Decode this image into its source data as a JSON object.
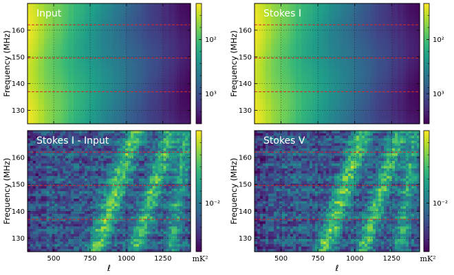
{
  "chart_data": [
    {
      "type": "heatmap",
      "title": "Input",
      "xlabel": "",
      "ylabel": "Frequency (MHz)",
      "xlim": [
        320,
        1440
      ],
      "ylim": [
        125,
        170
      ],
      "xticks": [
        500,
        750,
        1000,
        1250
      ],
      "yticks": [
        130,
        140,
        150,
        160
      ],
      "hlines_mhz": [
        137,
        149.6,
        162
      ],
      "colorbar": {
        "scale": "log",
        "ticks": [
          100,
          1000
        ],
        "tick_labels": [
          "10²",
          "10³"
        ],
        "label": ""
      }
    },
    {
      "type": "heatmap",
      "title": "Stokes I",
      "xlabel": "",
      "ylabel": "Frequency (MHz)",
      "xlim": [
        320,
        1440
      ],
      "ylim": [
        125,
        170
      ],
      "xticks": [
        500,
        750,
        1000,
        1250
      ],
      "yticks": [
        130,
        140,
        150,
        160
      ],
      "hlines_mhz": [
        137,
        149.6,
        162
      ],
      "colorbar": {
        "scale": "log",
        "ticks": [
          1000,
          100
        ],
        "tick_labels": [
          "10³",
          "10²"
        ],
        "label": ""
      }
    },
    {
      "type": "heatmap",
      "title": "Stokes I - Input",
      "xlabel": "ℓ",
      "ylabel": "Frequency (MHz)",
      "xlim": [
        320,
        1440
      ],
      "ylim": [
        125,
        170
      ],
      "xticks": [
        500,
        750,
        1000,
        1250
      ],
      "yticks": [
        130,
        140,
        150,
        160
      ],
      "hlines_mhz": [
        137,
        149.6,
        162
      ],
      "colorbar": {
        "scale": "log",
        "ticks": [
          0.01
        ],
        "tick_labels": [
          "10⁻²"
        ],
        "label": "mK²"
      }
    },
    {
      "type": "heatmap",
      "title": "Stokes V",
      "xlabel": "ℓ",
      "ylabel": "Frequency (MHz)",
      "xlim": [
        320,
        1440
      ],
      "ylim": [
        125,
        170
      ],
      "xticks": [
        500,
        750,
        1000,
        1250
      ],
      "yticks": [
        130,
        140,
        150,
        160
      ],
      "hlines_mhz": [
        137,
        149.6,
        162
      ],
      "colorbar": {
        "scale": "log",
        "ticks": [
          0.01
        ],
        "tick_labels": [
          "10⁻²"
        ],
        "label": "mK²"
      }
    }
  ],
  "colors": {
    "hline": "#d62728",
    "grid": "#1a1a1a",
    "title_text": "#ffffff",
    "viridis": [
      "#440154",
      "#482878",
      "#3e4989",
      "#31688e",
      "#26828e",
      "#1f9e89",
      "#35b779",
      "#6ece58",
      "#b5de2b",
      "#fde725"
    ]
  }
}
